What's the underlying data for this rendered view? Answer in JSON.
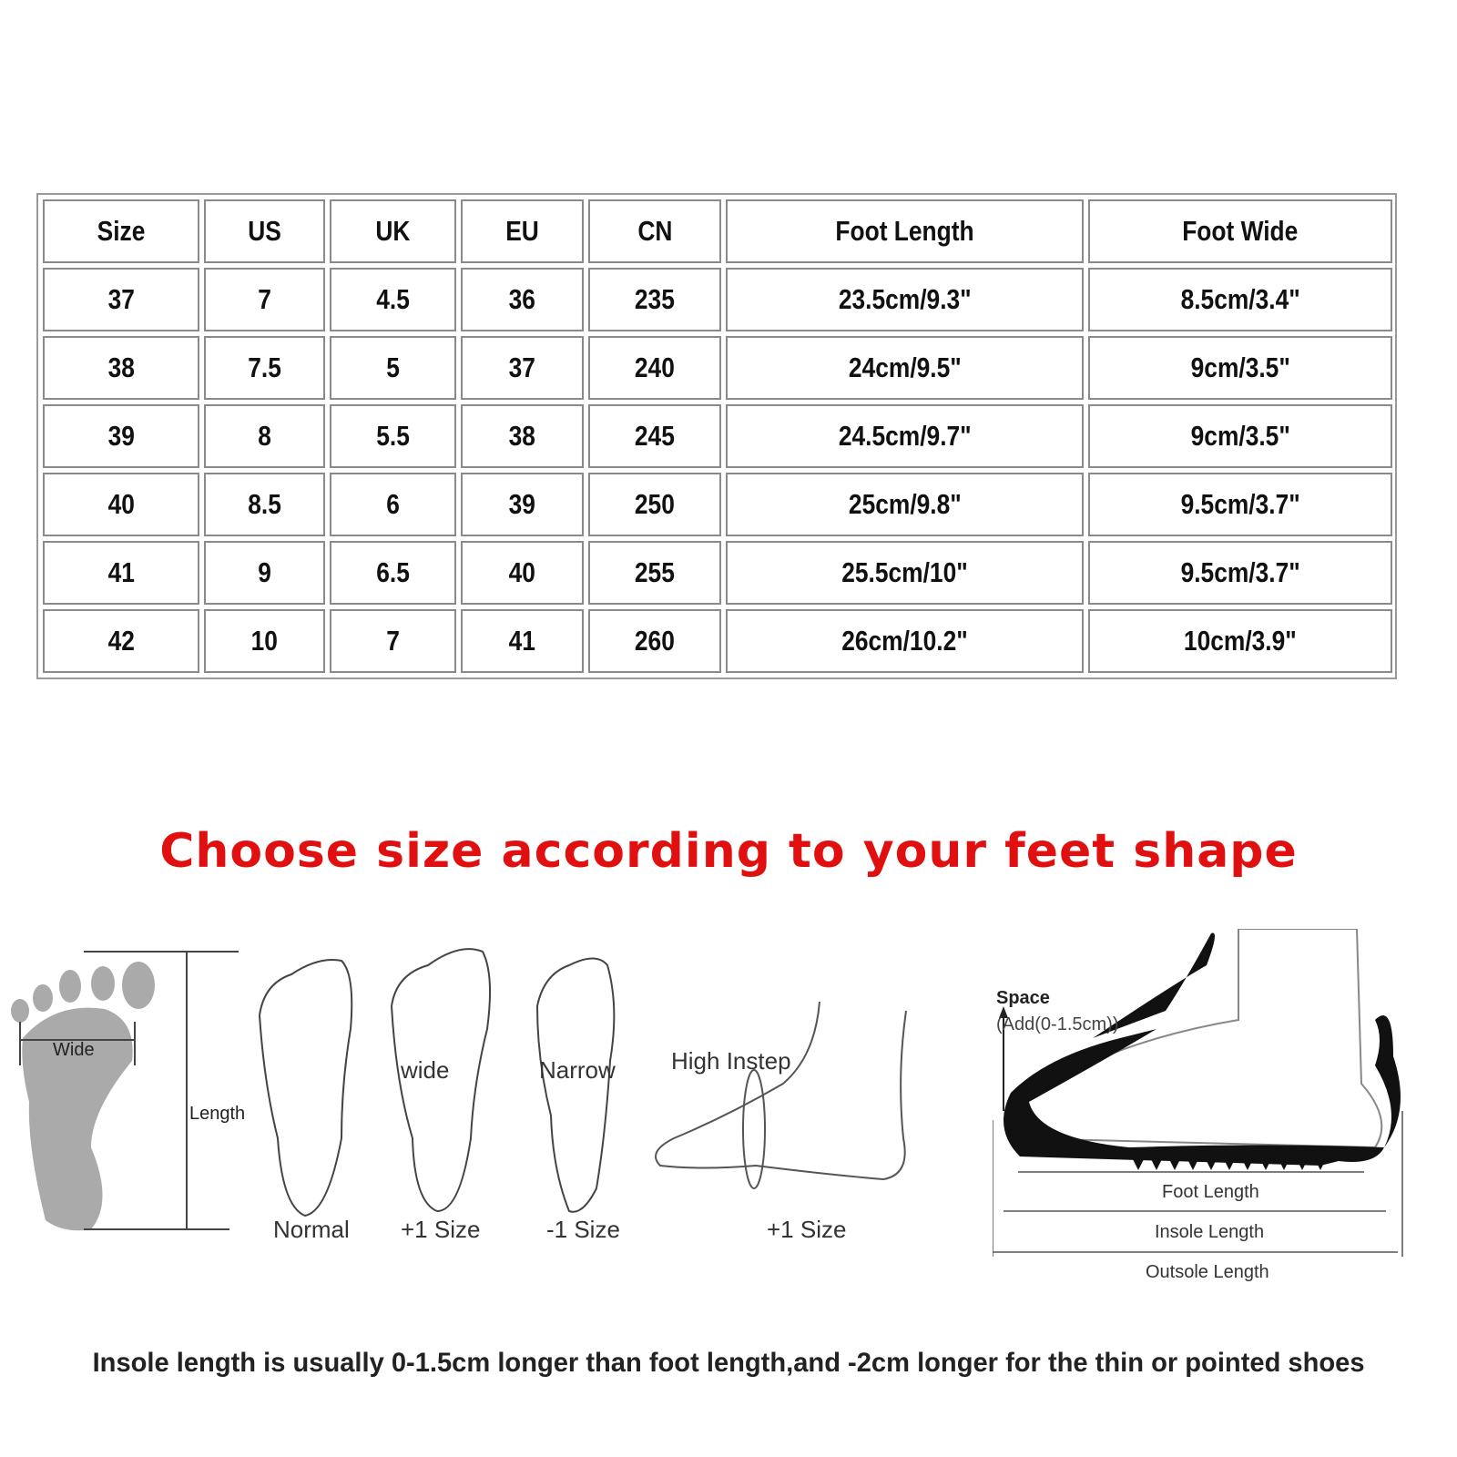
{
  "size_table": {
    "headers": [
      "Size",
      "US",
      "UK",
      "EU",
      "CN",
      "Foot Length",
      "Foot Wide"
    ],
    "rows": [
      [
        "37",
        "7",
        "4.5",
        "36",
        "235",
        "23.5cm/9.3\"",
        "8.5cm/3.4\""
      ],
      [
        "38",
        "7.5",
        "5",
        "37",
        "240",
        "24cm/9.5\"",
        "9cm/3.5\""
      ],
      [
        "39",
        "8",
        "5.5",
        "38",
        "245",
        "24.5cm/9.7\"",
        "9cm/3.5\""
      ],
      [
        "40",
        "8.5",
        "6",
        "39",
        "250",
        "25cm/9.8\"",
        "9.5cm/3.7\""
      ],
      [
        "41",
        "9",
        "6.5",
        "40",
        "255",
        "25.5cm/10\"",
        "9.5cm/3.7\""
      ],
      [
        "42",
        "10",
        "7",
        "41",
        "260",
        "26cm/10.2\"",
        "10cm/3.9\""
      ]
    ]
  },
  "headline": "Choose size according to your feet shape",
  "headline_color": "#e01010",
  "diagram": {
    "wide_label": "Wide",
    "length_label": "Length",
    "feet": [
      {
        "caption": "Normal",
        "inner": ""
      },
      {
        "caption": "+1 Size",
        "inner": "wide"
      },
      {
        "caption": "-1 Size",
        "inner": "Narrow"
      },
      {
        "caption": "+1 Size",
        "inner": "High Instep"
      }
    ],
    "shoe": {
      "space": "Space",
      "space_add": "(Add(0-1.5cm))",
      "foot_length": "Foot Length",
      "insole_length": "Insole Length",
      "outsole_length": "Outsole Length"
    }
  },
  "note": "Insole length is usually 0-1.5cm longer than foot length,and -2cm longer for the thin or pointed shoes"
}
